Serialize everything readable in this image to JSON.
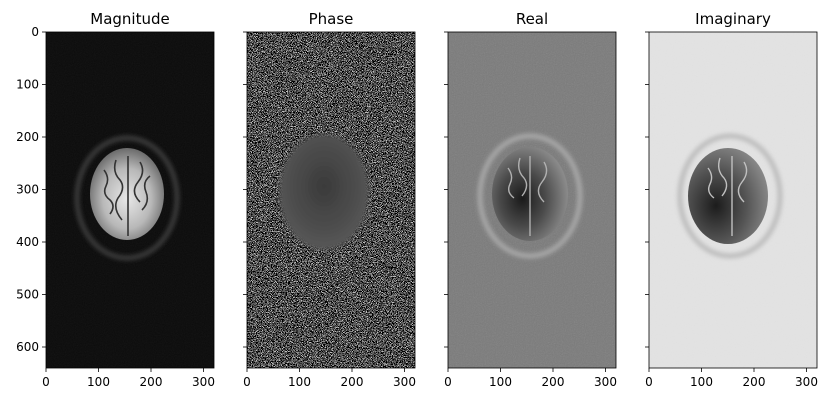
{
  "figure": {
    "panels": [
      {
        "title": "Magnitude",
        "style": "magnitude"
      },
      {
        "title": "Phase",
        "style": "phase"
      },
      {
        "title": "Real",
        "style": "real"
      },
      {
        "title": "Imaginary",
        "style": "imaginary"
      }
    ],
    "x_axis": {
      "range": [
        0,
        320
      ],
      "ticks": [
        "0",
        "100",
        "200",
        "300"
      ]
    },
    "y_axis": {
      "range": [
        0,
        640
      ],
      "ticks": [
        "0",
        "100",
        "200",
        "300",
        "400",
        "500",
        "600"
      ],
      "labels_on_first_panel_only": true
    },
    "colormap": "gray"
  }
}
